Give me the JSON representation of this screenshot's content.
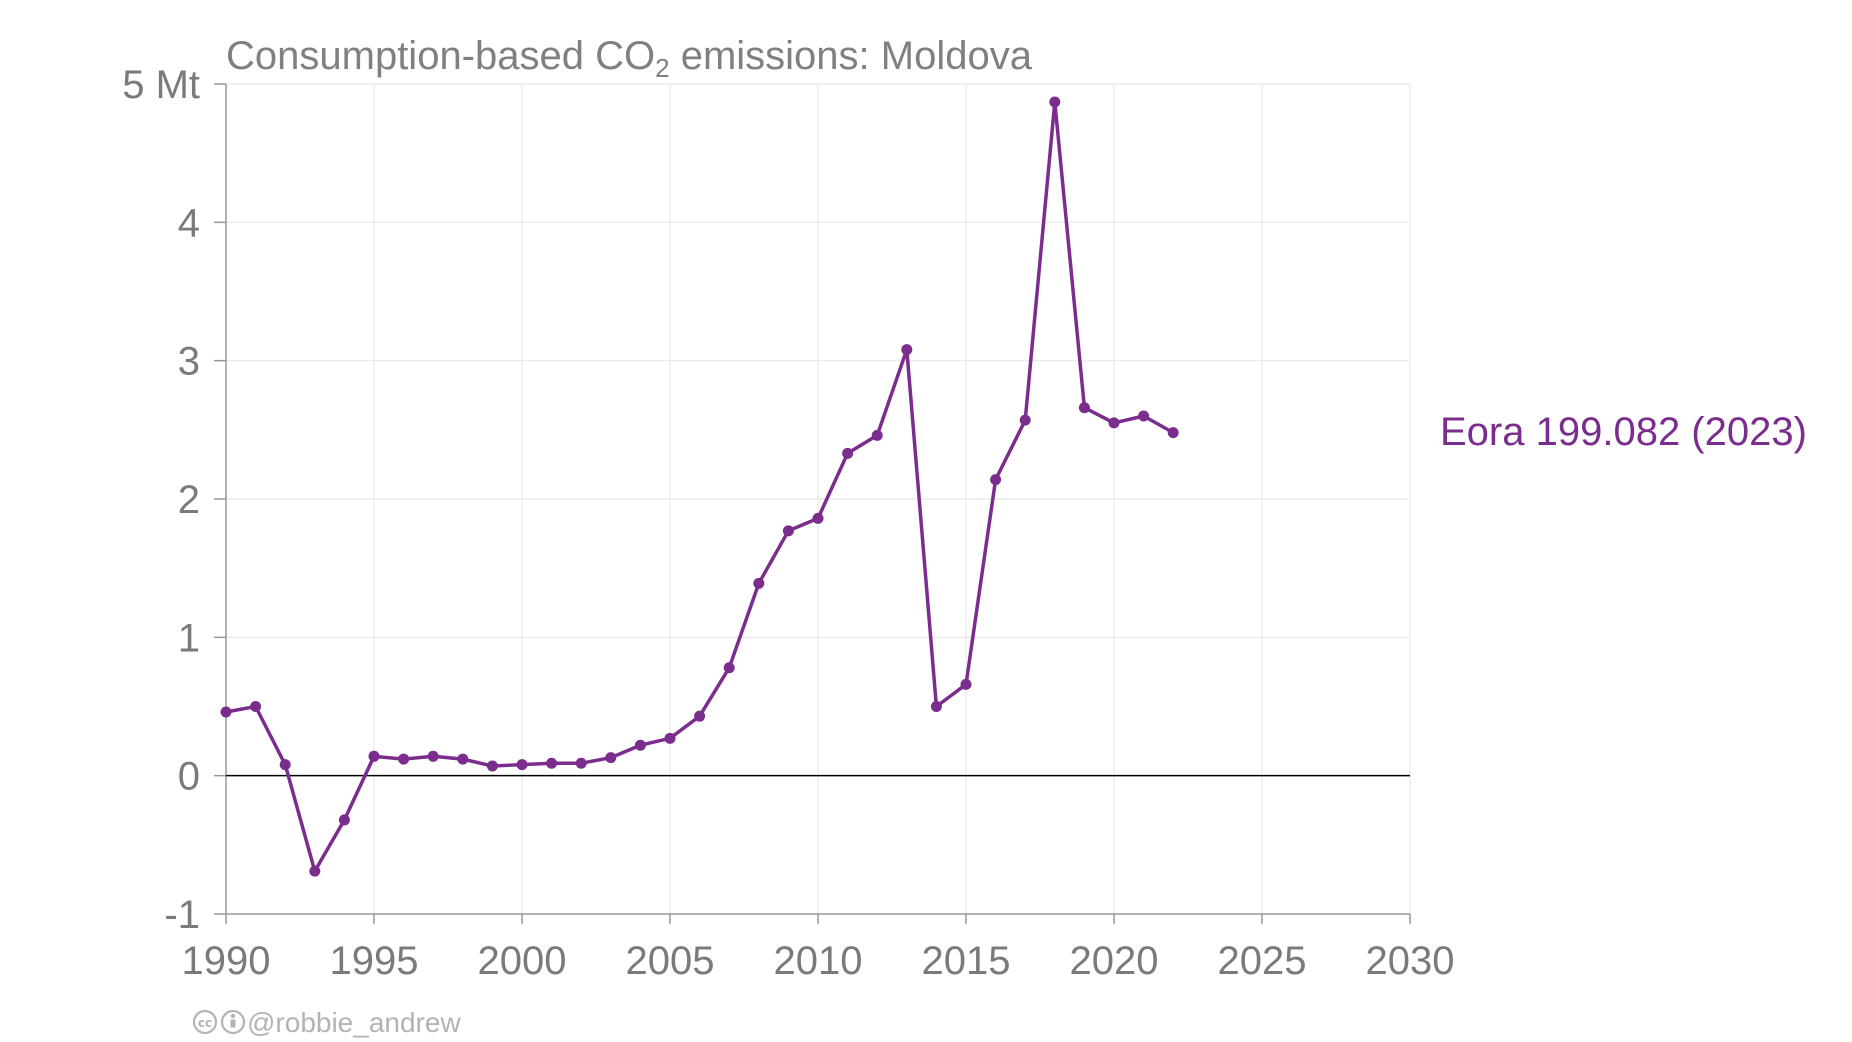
{
  "chart_data": {
    "type": "line",
    "title": {
      "prefix": "Consumption-based CO",
      "subscript": "2",
      "suffix": " emissions: Moldova"
    },
    "xlabel": "",
    "ylabel": "",
    "xlim": [
      1990,
      2030
    ],
    "ylim": [
      -1,
      5
    ],
    "x_ticks": [
      1990,
      1995,
      2000,
      2005,
      2010,
      2015,
      2020,
      2025,
      2030
    ],
    "y_ticks": [
      {
        "value": -1,
        "label": "-1"
      },
      {
        "value": 0,
        "label": "0"
      },
      {
        "value": 1,
        "label": "1"
      },
      {
        "value": 2,
        "label": "2"
      },
      {
        "value": 3,
        "label": "3"
      },
      {
        "value": 4,
        "label": "4"
      },
      {
        "value": 5,
        "label": "5 Mt"
      }
    ],
    "grid": true,
    "zero_line": true,
    "legend": "right-of-line-end",
    "series": [
      {
        "name": "Eora 199.082 (2023)",
        "color": "#7b2d8e",
        "x": [
          1990,
          1991,
          1992,
          1993,
          1994,
          1995,
          1996,
          1997,
          1998,
          1999,
          2000,
          2001,
          2002,
          2003,
          2004,
          2005,
          2006,
          2007,
          2008,
          2009,
          2010,
          2011,
          2012,
          2013,
          2014,
          2015,
          2016,
          2017,
          2018,
          2019,
          2020,
          2021,
          2022
        ],
        "values": [
          0.46,
          0.5,
          0.08,
          -0.69,
          -0.32,
          0.14,
          0.12,
          0.14,
          0.12,
          0.07,
          0.08,
          0.09,
          0.09,
          0.13,
          0.22,
          0.27,
          0.43,
          0.78,
          1.39,
          1.77,
          1.86,
          2.33,
          2.46,
          3.08,
          0.5,
          0.66,
          2.14,
          2.57,
          4.87,
          2.66,
          2.55,
          2.6,
          2.48
        ]
      }
    ]
  },
  "credit": {
    "icons": [
      "cc-icon",
      "by-icon"
    ],
    "handle": "@robbie_andrew"
  },
  "colors": {
    "series": "#7b2d8e",
    "text": "#7a7a7a",
    "grid": "#e8e8e8",
    "axis": "#999999",
    "zero_line": "#000000",
    "credit": "#b3b3b3"
  }
}
